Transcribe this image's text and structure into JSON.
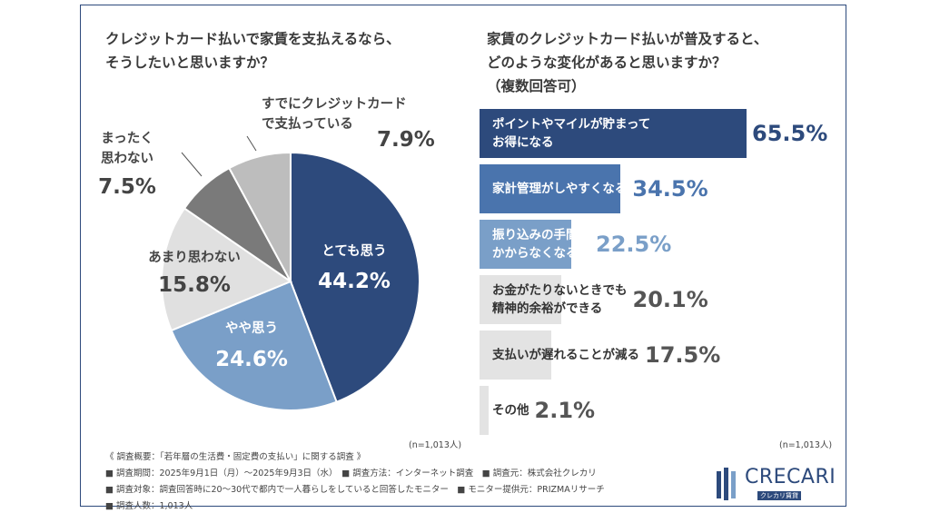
{
  "left": {
    "question": "クレジットカード払いで家賃を支払えるなら、\nそうしたいと思いますか？",
    "n_note": "(n=1,013人)"
  },
  "right": {
    "question": "家賃のクレジットカード払いが普及すると、\nどのような変化があると思いますか？\n（複数回答可）",
    "n_note": "(n=1,013人)"
  },
  "footer": {
    "line1": "《 調査概要：「若年層の生活費・固定費の支払い」に関する調査 》",
    "line2": "■ 調査期間：2025年9月1日（月）〜2025年9月3日（水）　■ 調査方法：インターネット調査　■ 調査元：株式会社クレカリ",
    "line3": "■ 調査対象：調査回答時に20〜30代で都内で一人暮らしをしていると回答したモニター　■ モニター提供元：PRIZMAリサーチ",
    "line4": "■ 調査人数：1,013人"
  },
  "logo": {
    "name": "CRECARI",
    "sub": "クレカリ賃貸"
  },
  "chart_data": [
    {
      "type": "pie",
      "title": "クレジットカード払いで家賃を支払えるなら、そうしたいと思いますか？",
      "slices": [
        {
          "label": "とても思う",
          "value": 44.2,
          "value_label": "44.2%",
          "color": "#2d4a7c"
        },
        {
          "label": "やや思う",
          "value": 24.6,
          "value_label": "24.6%",
          "color": "#7a9fc8"
        },
        {
          "label": "あまり思わない",
          "value": 15.8,
          "value_label": "15.8%",
          "color": "#e0e0e0"
        },
        {
          "label": "まったく\n思わない",
          "value": 7.5,
          "value_label": "7.5%",
          "color": "#7a7a7a"
        },
        {
          "label": "すでにクレジットカード\nで支払っている",
          "value": 7.9,
          "value_label": "7.9%",
          "color": "#bdbdbd"
        }
      ]
    },
    {
      "type": "bar",
      "orientation": "horizontal",
      "title": "家賃のクレジットカード払いが普及すると、どのような変化があると思いますか？（複数回答可）",
      "categories": [
        "ポイントやマイルが貯まって\nお得になる",
        "家計管理がしやすくなる",
        "振り込みの手間が\nかからなくなる",
        "お金がたりないときでも\n精神的余裕ができる",
        "支払いが遅れることが減る",
        "その他"
      ],
      "values": [
        65.5,
        34.5,
        22.5,
        20.1,
        17.5,
        2.1
      ],
      "value_labels": [
        "65.5%",
        "34.5%",
        "22.5%",
        "20.1%",
        "17.5%",
        "2.1%"
      ],
      "colors": [
        "#2d4a7c",
        "#4a74ad",
        "#7a9fc8",
        "#e3e3e3",
        "#e3e3e3",
        "#e3e3e3"
      ],
      "label_colors": [
        "#ffffff",
        "#ffffff",
        "#ffffff",
        "#333333",
        "#333333",
        "#333333"
      ],
      "value_colors": [
        "#2d4a7c",
        "#4a74ad",
        "#7a9fc8",
        "#555555",
        "#555555",
        "#555555"
      ]
    }
  ]
}
